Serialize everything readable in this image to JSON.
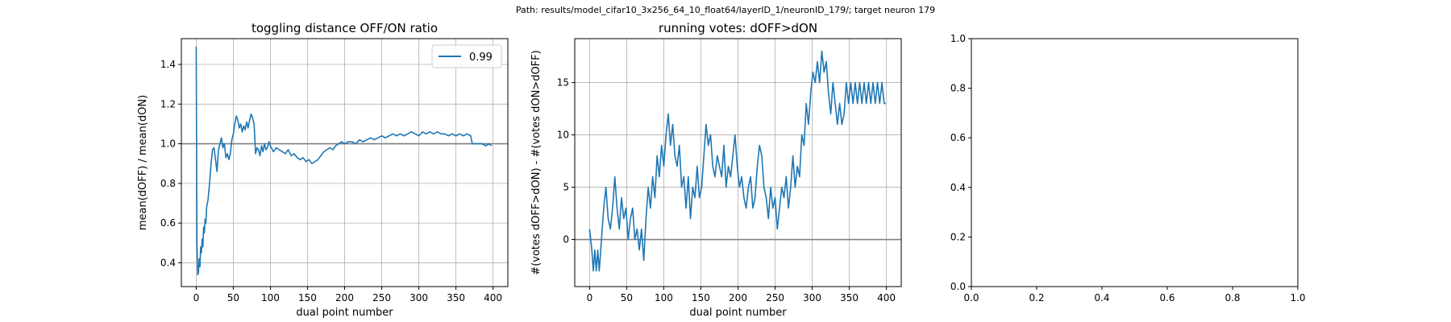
{
  "suptitle": "Path: results/model_cifar10_3x256_64_10_float64/layerID_1/neuronID_179/; target neuron 179",
  "chart_data": [
    {
      "type": "line",
      "title": "toggling distance OFF/ON ratio",
      "xlabel": "dual point number",
      "ylabel": "mean(dOFF) / mean(dON)",
      "xlim": [
        -20,
        420
      ],
      "ylim": [
        0.28,
        1.53
      ],
      "xticks": [
        0,
        50,
        100,
        150,
        200,
        250,
        300,
        350,
        400
      ],
      "yticks": [
        0.4,
        0.6,
        0.8,
        1.0,
        1.2,
        1.4
      ],
      "ytick_labels": [
        "0.4",
        "0.6",
        "0.8",
        "1.0",
        "1.2",
        "1.4"
      ],
      "grid": true,
      "legend": {
        "placement": "top-right",
        "entries": [
          "0.99"
        ]
      },
      "reference_line": {
        "y": 1.0,
        "color": "#808080"
      },
      "series": [
        {
          "name": "0.99",
          "color": "#1f77b4",
          "x": [
            0,
            1,
            2,
            3,
            4,
            5,
            6,
            7,
            8,
            9,
            10,
            11,
            12,
            13,
            14,
            16,
            18,
            20,
            22,
            24,
            26,
            28,
            30,
            32,
            34,
            36,
            38,
            40,
            42,
            44,
            46,
            48,
            50,
            52,
            54,
            56,
            58,
            60,
            62,
            64,
            66,
            68,
            70,
            72,
            74,
            76,
            78,
            80,
            82,
            84,
            86,
            88,
            90,
            92,
            94,
            96,
            98,
            100,
            104,
            108,
            112,
            116,
            120,
            124,
            128,
            132,
            136,
            140,
            144,
            148,
            152,
            156,
            160,
            164,
            168,
            172,
            176,
            180,
            184,
            188,
            192,
            196,
            200,
            205,
            210,
            215,
            220,
            225,
            230,
            235,
            240,
            245,
            250,
            255,
            260,
            265,
            270,
            275,
            280,
            285,
            290,
            295,
            300,
            305,
            310,
            315,
            320,
            325,
            330,
            335,
            340,
            345,
            350,
            355,
            360,
            365,
            370,
            372,
            375,
            380,
            385,
            390,
            395,
            398
          ],
          "y": [
            1.49,
            0.5,
            0.34,
            0.35,
            0.42,
            0.38,
            0.48,
            0.45,
            0.52,
            0.48,
            0.58,
            0.55,
            0.62,
            0.6,
            0.68,
            0.72,
            0.8,
            0.9,
            0.97,
            0.98,
            0.92,
            0.86,
            0.97,
            1.0,
            1.03,
            0.98,
            1.0,
            0.93,
            0.95,
            0.92,
            0.95,
            1.02,
            1.05,
            1.1,
            1.14,
            1.12,
            1.08,
            1.1,
            1.06,
            1.09,
            1.07,
            1.11,
            1.08,
            1.12,
            1.15,
            1.13,
            1.1,
            0.95,
            0.98,
            0.97,
            0.94,
            0.99,
            0.96,
            1.0,
            0.97,
            0.98,
            1.01,
            0.99,
            0.96,
            0.98,
            0.97,
            0.96,
            0.95,
            0.97,
            0.94,
            0.95,
            0.93,
            0.92,
            0.93,
            0.91,
            0.92,
            0.9,
            0.91,
            0.92,
            0.94,
            0.96,
            0.97,
            0.98,
            0.97,
            0.99,
            1.0,
            1.01,
            1.0,
            1.01,
            1.01,
            1.0,
            1.02,
            1.01,
            1.02,
            1.03,
            1.02,
            1.03,
            1.04,
            1.03,
            1.04,
            1.05,
            1.04,
            1.05,
            1.04,
            1.05,
            1.06,
            1.05,
            1.04,
            1.06,
            1.05,
            1.06,
            1.05,
            1.06,
            1.05,
            1.05,
            1.04,
            1.05,
            1.04,
            1.05,
            1.04,
            1.05,
            1.04,
            1.0,
            1.0,
            1.0,
            1.0,
            0.99,
            1.0,
            0.99
          ]
        }
      ]
    },
    {
      "type": "line",
      "title": "running votes: dOFF>dON",
      "xlabel": "dual point number",
      "ylabel": "#(votes dOFF>dON) - #(votes dON>dOFF)",
      "xlim": [
        -20,
        420
      ],
      "ylim": [
        -4.5,
        19.2
      ],
      "xticks": [
        0,
        50,
        100,
        150,
        200,
        250,
        300,
        350,
        400
      ],
      "yticks": [
        0,
        5,
        10,
        15
      ],
      "ytick_labels": [
        "0",
        "5",
        "10",
        "15"
      ],
      "grid": true,
      "reference_line": {
        "y": 0,
        "color": "#808080"
      },
      "series": [
        {
          "color": "#1f77b4",
          "x": [
            0,
            3,
            5,
            7,
            9,
            11,
            13,
            16,
            19,
            22,
            25,
            28,
            31,
            34,
            37,
            40,
            43,
            46,
            49,
            52,
            55,
            58,
            61,
            64,
            67,
            70,
            73,
            76,
            79,
            82,
            85,
            88,
            91,
            94,
            97,
            100,
            103,
            106,
            109,
            112,
            115,
            118,
            121,
            124,
            127,
            130,
            133,
            136,
            139,
            142,
            145,
            148,
            151,
            154,
            157,
            160,
            163,
            166,
            169,
            172,
            175,
            178,
            181,
            184,
            187,
            190,
            193,
            196,
            199,
            202,
            205,
            208,
            211,
            214,
            217,
            220,
            223,
            226,
            229,
            232,
            235,
            238,
            241,
            244,
            247,
            250,
            253,
            256,
            259,
            262,
            265,
            268,
            271,
            274,
            277,
            280,
            283,
            286,
            289,
            292,
            295,
            298,
            301,
            304,
            307,
            310,
            313,
            316,
            319,
            322,
            325,
            328,
            331,
            334,
            337,
            340,
            343,
            346,
            349,
            352,
            355,
            358,
            361,
            364,
            367,
            370,
            373,
            376,
            379,
            382,
            385,
            388,
            391,
            394,
            397,
            399
          ],
          "y": [
            1,
            -1,
            -3,
            -1,
            -3,
            -1,
            -3,
            0,
            3,
            5,
            2,
            1,
            3,
            6,
            3,
            1,
            4,
            2,
            3,
            0,
            2,
            3,
            0,
            1,
            -1,
            1,
            -2,
            2,
            5,
            3,
            6,
            4,
            8,
            6,
            9,
            7,
            10,
            12,
            9,
            11,
            8,
            7,
            9,
            5,
            6,
            3,
            6,
            2,
            5,
            4,
            7,
            4,
            5,
            8,
            11,
            9,
            10,
            7,
            6,
            8,
            7,
            6,
            9,
            5,
            7,
            6,
            8,
            10,
            7,
            5,
            6,
            4,
            3,
            5,
            6,
            3,
            4,
            7,
            9,
            8,
            5,
            4,
            2,
            5,
            3,
            4,
            1,
            3,
            5,
            4,
            6,
            3,
            5,
            8,
            5,
            7,
            6,
            10,
            9,
            13,
            11,
            14,
            16,
            15,
            17,
            15,
            18,
            16,
            17,
            14,
            12,
            15,
            13,
            11,
            13,
            11,
            12,
            15,
            13,
            15,
            13,
            15,
            13,
            15,
            13,
            15,
            13,
            15,
            13,
            15,
            13,
            15,
            13,
            15,
            13,
            13
          ]
        }
      ]
    },
    {
      "type": "line",
      "title": "",
      "xlabel": "",
      "ylabel": "",
      "xlim": [
        0,
        1
      ],
      "ylim": [
        0,
        1
      ],
      "xticks": [
        0,
        0.2,
        0.4,
        0.6,
        0.8,
        1.0
      ],
      "yticks": [
        0,
        0.2,
        0.4,
        0.6,
        0.8,
        1.0
      ],
      "xtick_labels": [
        "0.0",
        "0.2",
        "0.4",
        "0.6",
        "0.8",
        "1.0"
      ],
      "ytick_labels": [
        "0.0",
        "0.2",
        "0.4",
        "0.6",
        "0.8",
        "1.0"
      ],
      "grid": false,
      "series": []
    }
  ]
}
